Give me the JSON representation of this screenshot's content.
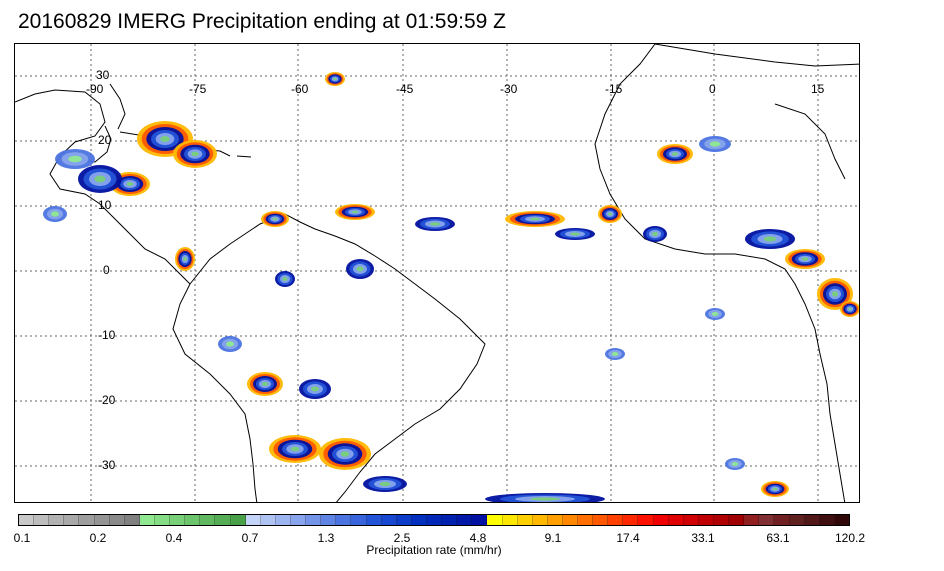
{
  "title": "20160829 IMERG Precipitation ending at 01:59:59 Z",
  "map": {
    "lon_labels": [
      "-90",
      "-75",
      "-60",
      "-45",
      "-30",
      "-15",
      "0",
      "15"
    ],
    "lat_labels": [
      "30",
      "20",
      "10",
      "0",
      "-10",
      "-20",
      "-30"
    ]
  },
  "colorbar": {
    "title": "Precipitation rate (mm/hr)",
    "tick_labels": [
      "0.1",
      "0.2",
      "0.4",
      "0.7",
      "1.3",
      "2.5",
      "4.8",
      "9.1",
      "17.4",
      "33.1",
      "63.1",
      "120.2"
    ],
    "colors": [
      "#c8c8c8",
      "#bdbdbd",
      "#b2b2b2",
      "#a8a8a8",
      "#9e9e9e",
      "#949494",
      "#8a8a8a",
      "#808080",
      "#90e890",
      "#84dc84",
      "#78d078",
      "#6cc46c",
      "#60b860",
      "#54ac54",
      "#48a048",
      "#c4d4f8",
      "#b0c4f4",
      "#9cb4f0",
      "#88a4ec",
      "#7494e8",
      "#6084e4",
      "#4c74e0",
      "#3864dc",
      "#2454d8",
      "#1848d0",
      "#0c3cc8",
      "#0030c0",
      "#0028b8",
      "#0020b0",
      "#0018a8",
      "#0010a0",
      "#ffff00",
      "#ffe800",
      "#ffd000",
      "#ffb800",
      "#ffa000",
      "#ff8800",
      "#ff7000",
      "#ff5800",
      "#ff4000",
      "#ff2800",
      "#ff1000",
      "#f00000",
      "#e00000",
      "#d00000",
      "#c00000",
      "#b00000",
      "#a00000",
      "#902020",
      "#803030",
      "#702020",
      "#602020",
      "#501818",
      "#401010",
      "#300808"
    ]
  }
}
